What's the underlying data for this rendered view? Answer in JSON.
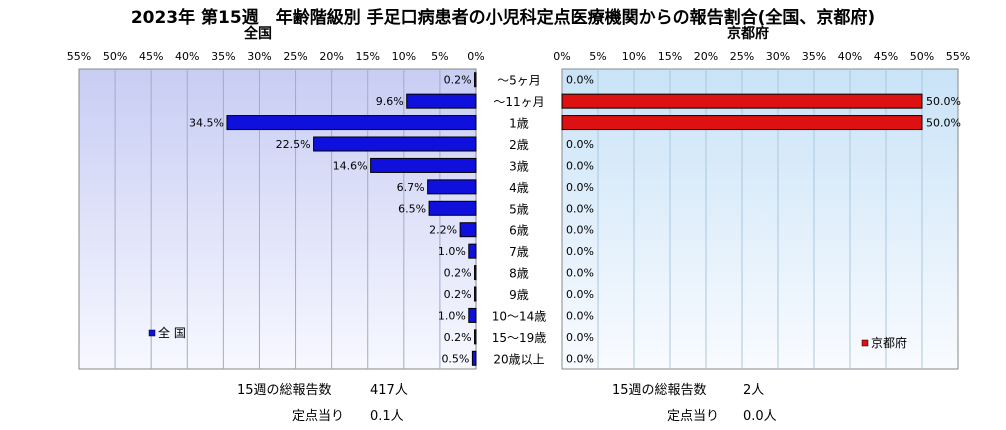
{
  "title": "2023年 第15週　年齢階級別 手足口病患者の小児科定点医療機関からの報告割合(全国、京都府)",
  "chart_data": [
    {
      "type": "bar",
      "orientation": "horizontal",
      "title": "全国",
      "categories": [
        "～5ヶ月",
        "～11ヶ月",
        "1歳",
        "2歳",
        "3歳",
        "4歳",
        "5歳",
        "6歳",
        "7歳",
        "8歳",
        "9歳",
        "10～14歳",
        "15～19歳",
        "20歳以上"
      ],
      "series": [
        {
          "name": "全 国",
          "color": "#1010dd",
          "values": [
            0.2,
            9.6,
            34.5,
            22.5,
            14.6,
            6.7,
            6.5,
            2.2,
            1.0,
            0.2,
            0.2,
            1.0,
            0.2,
            0.5
          ]
        }
      ],
      "value_labels": [
        "0.2%",
        "9.6%",
        "34.5%",
        "22.5%",
        "14.6%",
        "6.7%",
        "6.5%",
        "2.2%",
        "1.0%",
        "0.2%",
        "0.2%",
        "1.0%",
        "0.2%",
        "0.5%"
      ],
      "xlim": [
        0,
        55
      ],
      "ticks": [
        "55%",
        "50%",
        "45%",
        "40%",
        "35%",
        "30%",
        "25%",
        "20%",
        "15%",
        "10%",
        "5%",
        "0%"
      ],
      "direction": "reversed",
      "grid": true,
      "background": "gradient lavender-blue",
      "legend_position": "bottom-left"
    },
    {
      "type": "bar",
      "orientation": "horizontal",
      "title": "京都府",
      "categories": [
        "～5ヶ月",
        "～11ヶ月",
        "1歳",
        "2歳",
        "3歳",
        "4歳",
        "5歳",
        "6歳",
        "7歳",
        "8歳",
        "9歳",
        "10～14歳",
        "15～19歳",
        "20歳以上"
      ],
      "series": [
        {
          "name": "京都府",
          "color": "#dd1111",
          "values": [
            0.0,
            50.0,
            50.0,
            0.0,
            0.0,
            0.0,
            0.0,
            0.0,
            0.0,
            0.0,
            0.0,
            0.0,
            0.0,
            0.0
          ]
        }
      ],
      "value_labels": [
        "0.0%",
        "50.0%",
        "50.0%",
        "0.0%",
        "0.0%",
        "0.0%",
        "0.0%",
        "0.0%",
        "0.0%",
        "0.0%",
        "0.0%",
        "0.0%",
        "0.0%",
        "0.0%"
      ],
      "xlim": [
        0,
        55
      ],
      "ticks": [
        "0%",
        "5%",
        "10%",
        "15%",
        "20%",
        "25%",
        "30%",
        "35%",
        "40%",
        "45%",
        "50%",
        "55%"
      ],
      "grid": true,
      "background": "gradient light-blue",
      "legend_position": "bottom-right"
    }
  ],
  "footer": {
    "national": {
      "total_label": "15週の総報告数",
      "total_value": "417人",
      "per_label": "定点当り",
      "per_value": "0.1人"
    },
    "kyoto": {
      "total_label": "15週の総報告数",
      "total_value": "2人",
      "per_label": "定点当り",
      "per_value": "0.0人"
    }
  }
}
